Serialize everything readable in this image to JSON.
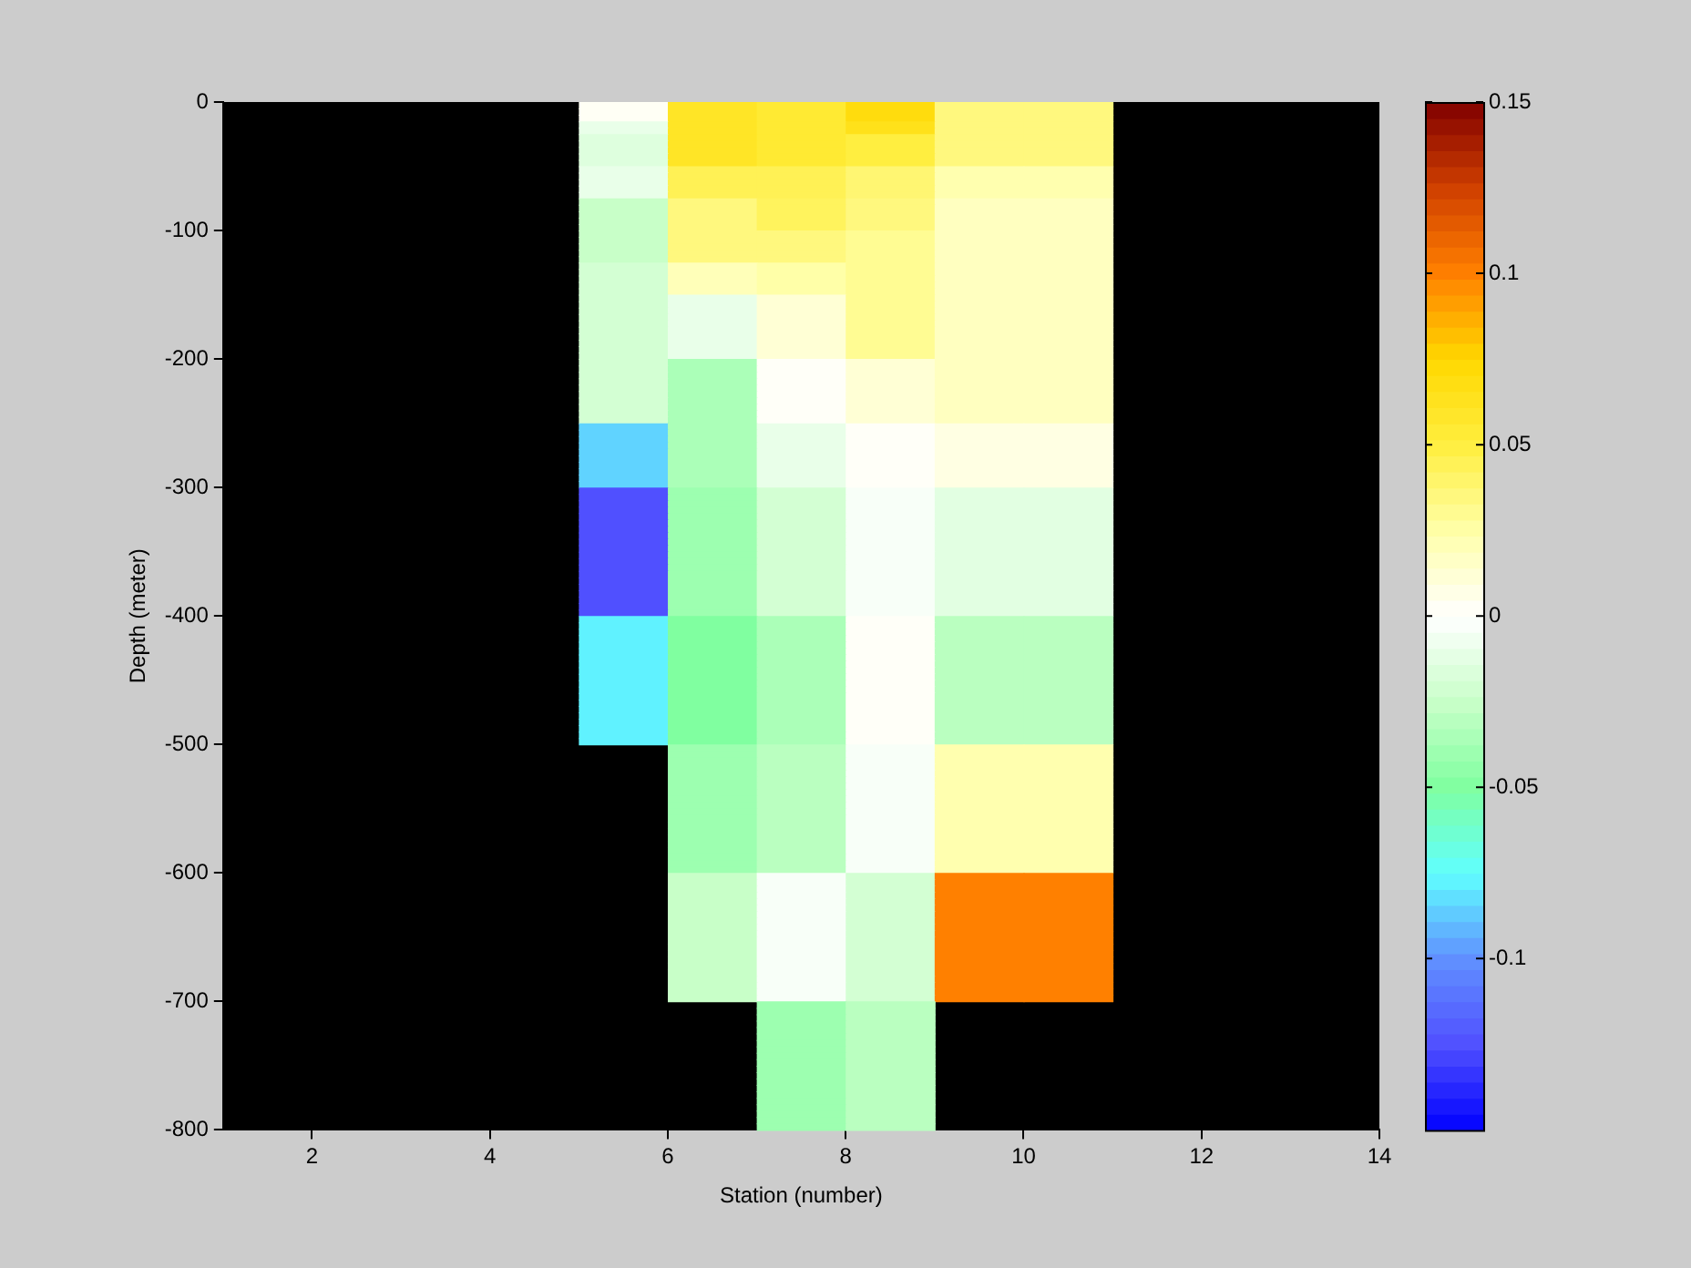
{
  "chart_data": {
    "type": "heatmap",
    "xlabel": "Station (number)",
    "ylabel": "Depth (meter)",
    "xlim": [
      1,
      14
    ],
    "xticks": [
      2,
      4,
      6,
      8,
      10,
      12,
      14
    ],
    "ylim": [
      -800,
      0
    ],
    "yticks": [
      -800,
      -700,
      -600,
      -500,
      -400,
      -300,
      -200,
      -100,
      0
    ],
    "clim": [
      -0.15,
      0.15
    ],
    "cticks": [
      -0.1,
      -0.05,
      0,
      0.05,
      0.1,
      0.15
    ],
    "cells": [
      [
        null,
        null,
        null,
        null,
        0.003,
        0.06,
        0.055,
        0.07,
        0.035,
        0.035,
        null,
        null,
        null
      ],
      [
        null,
        null,
        null,
        null,
        0.003,
        0.06,
        0.055,
        0.07,
        0.035,
        0.035,
        null,
        null,
        null
      ],
      [
        null,
        null,
        null,
        null,
        0.003,
        0.06,
        0.055,
        0.07,
        0.035,
        0.035,
        null,
        null,
        null
      ],
      [
        null,
        null,
        null,
        null,
        -0.01,
        0.06,
        0.055,
        0.065,
        0.035,
        0.035,
        null,
        null,
        null
      ],
      [
        null,
        null,
        null,
        null,
        -0.01,
        0.06,
        0.055,
        0.065,
        0.035,
        0.035,
        null,
        null,
        null
      ],
      [
        null,
        null,
        null,
        null,
        -0.015,
        0.06,
        0.055,
        0.05,
        0.035,
        0.035,
        null,
        null,
        null
      ],
      [
        null,
        null,
        null,
        null,
        -0.015,
        0.06,
        0.055,
        0.05,
        0.035,
        0.035,
        null,
        null,
        null
      ],
      [
        null,
        null,
        null,
        null,
        -0.015,
        0.06,
        0.055,
        0.05,
        0.035,
        0.035,
        null,
        null,
        null
      ],
      [
        null,
        null,
        null,
        null,
        -0.015,
        0.06,
        0.055,
        0.05,
        0.035,
        0.035,
        null,
        null,
        null
      ],
      [
        null,
        null,
        null,
        null,
        -0.015,
        0.06,
        0.055,
        0.05,
        0.035,
        0.035,
        null,
        null,
        null
      ],
      [
        null,
        null,
        null,
        null,
        -0.01,
        0.045,
        0.045,
        0.038,
        0.023,
        0.023,
        null,
        null,
        null
      ],
      [
        null,
        null,
        null,
        null,
        -0.01,
        0.045,
        0.045,
        0.038,
        0.023,
        0.023,
        null,
        null,
        null
      ],
      [
        null,
        null,
        null,
        null,
        -0.01,
        0.045,
        0.045,
        0.038,
        0.023,
        0.023,
        null,
        null,
        null
      ],
      [
        null,
        null,
        null,
        null,
        -0.01,
        0.045,
        0.045,
        0.038,
        0.023,
        0.023,
        null,
        null,
        null
      ],
      [
        null,
        null,
        null,
        null,
        -0.01,
        0.045,
        0.045,
        0.038,
        0.023,
        0.023,
        null,
        null,
        null
      ],
      [
        null,
        null,
        null,
        null,
        -0.025,
        0.035,
        0.043,
        0.035,
        0.018,
        0.018,
        null,
        null,
        null
      ],
      [
        null,
        null,
        null,
        null,
        -0.025,
        0.035,
        0.043,
        0.035,
        0.018,
        0.018,
        null,
        null,
        null
      ],
      [
        null,
        null,
        null,
        null,
        -0.025,
        0.035,
        0.043,
        0.035,
        0.018,
        0.018,
        null,
        null,
        null
      ],
      [
        null,
        null,
        null,
        null,
        -0.025,
        0.035,
        0.043,
        0.035,
        0.018,
        0.018,
        null,
        null,
        null
      ],
      [
        null,
        null,
        null,
        null,
        -0.025,
        0.035,
        0.043,
        0.035,
        0.018,
        0.018,
        null,
        null,
        null
      ],
      [
        null,
        null,
        null,
        null,
        -0.025,
        0.035,
        0.035,
        0.03,
        0.018,
        0.018,
        null,
        null,
        null
      ],
      [
        null,
        null,
        null,
        null,
        -0.025,
        0.035,
        0.035,
        0.03,
        0.018,
        0.018,
        null,
        null,
        null
      ],
      [
        null,
        null,
        null,
        null,
        -0.025,
        0.035,
        0.035,
        0.03,
        0.018,
        0.018,
        null,
        null,
        null
      ],
      [
        null,
        null,
        null,
        null,
        -0.025,
        0.035,
        0.035,
        0.03,
        0.018,
        0.018,
        null,
        null,
        null
      ],
      [
        null,
        null,
        null,
        null,
        -0.025,
        0.035,
        0.035,
        0.03,
        0.018,
        0.018,
        null,
        null,
        null
      ],
      [
        null,
        null,
        null,
        null,
        -0.02,
        0.02,
        0.025,
        0.03,
        0.018,
        0.018,
        null,
        null,
        null
      ],
      [
        null,
        null,
        null,
        null,
        -0.02,
        0.02,
        0.025,
        0.03,
        0.018,
        0.018,
        null,
        null,
        null
      ],
      [
        null,
        null,
        null,
        null,
        -0.02,
        0.02,
        0.025,
        0.03,
        0.018,
        0.018,
        null,
        null,
        null
      ],
      [
        null,
        null,
        null,
        null,
        -0.02,
        0.02,
        0.025,
        0.03,
        0.018,
        0.018,
        null,
        null,
        null
      ],
      [
        null,
        null,
        null,
        null,
        -0.02,
        0.02,
        0.025,
        0.03,
        0.018,
        0.018,
        null,
        null,
        null
      ],
      [
        null,
        null,
        null,
        null,
        -0.02,
        -0.01,
        0.012,
        0.03,
        0.018,
        0.018,
        null,
        null,
        null
      ],
      [
        null,
        null,
        null,
        null,
        -0.02,
        -0.01,
        0.012,
        0.03,
        0.018,
        0.018,
        null,
        null,
        null
      ],
      [
        null,
        null,
        null,
        null,
        -0.02,
        -0.01,
        0.012,
        0.03,
        0.018,
        0.018,
        null,
        null,
        null
      ],
      [
        null,
        null,
        null,
        null,
        -0.02,
        -0.01,
        0.012,
        0.03,
        0.018,
        0.018,
        null,
        null,
        null
      ],
      [
        null,
        null,
        null,
        null,
        -0.02,
        -0.01,
        0.012,
        0.03,
        0.018,
        0.018,
        null,
        null,
        null
      ],
      [
        null,
        null,
        null,
        null,
        -0.02,
        -0.01,
        0.012,
        0.03,
        0.018,
        0.018,
        null,
        null,
        null
      ],
      [
        null,
        null,
        null,
        null,
        -0.02,
        -0.01,
        0.012,
        0.03,
        0.018,
        0.018,
        null,
        null,
        null
      ],
      [
        null,
        null,
        null,
        null,
        -0.02,
        -0.01,
        0.012,
        0.03,
        0.018,
        0.018,
        null,
        null,
        null
      ],
      [
        null,
        null,
        null,
        null,
        -0.02,
        -0.01,
        0.012,
        0.03,
        0.018,
        0.018,
        null,
        null,
        null
      ],
      [
        null,
        null,
        null,
        null,
        -0.02,
        -0.01,
        0.012,
        0.03,
        0.018,
        0.018,
        null,
        null,
        null
      ],
      [
        null,
        null,
        null,
        null,
        -0.02,
        -0.035,
        0.002,
        0.012,
        0.018,
        0.018,
        null,
        null,
        null
      ],
      [
        null,
        null,
        null,
        null,
        -0.02,
        -0.035,
        0.002,
        0.012,
        0.018,
        0.018,
        null,
        null,
        null
      ],
      [
        null,
        null,
        null,
        null,
        -0.02,
        -0.035,
        0.002,
        0.012,
        0.018,
        0.018,
        null,
        null,
        null
      ],
      [
        null,
        null,
        null,
        null,
        -0.02,
        -0.035,
        0.002,
        0.012,
        0.018,
        0.018,
        null,
        null,
        null
      ],
      [
        null,
        null,
        null,
        null,
        -0.02,
        -0.035,
        0.002,
        0.012,
        0.018,
        0.018,
        null,
        null,
        null
      ],
      [
        null,
        null,
        null,
        null,
        -0.02,
        -0.035,
        0.002,
        0.012,
        0.018,
        0.018,
        null,
        null,
        null
      ],
      [
        null,
        null,
        null,
        null,
        -0.02,
        -0.035,
        0.002,
        0.012,
        0.018,
        0.018,
        null,
        null,
        null
      ],
      [
        null,
        null,
        null,
        null,
        -0.02,
        -0.035,
        0.002,
        0.012,
        0.018,
        0.018,
        null,
        null,
        null
      ],
      [
        null,
        null,
        null,
        null,
        -0.02,
        -0.035,
        0.002,
        0.012,
        0.018,
        0.018,
        null,
        null,
        null
      ],
      [
        null,
        null,
        null,
        null,
        -0.02,
        -0.035,
        0.002,
        0.012,
        0.018,
        0.018,
        null,
        null,
        null
      ],
      [
        null,
        null,
        null,
        null,
        -0.085,
        -0.035,
        -0.01,
        0.002,
        0.008,
        0.008,
        null,
        null,
        null
      ],
      [
        null,
        null,
        null,
        null,
        -0.085,
        -0.035,
        -0.01,
        0.002,
        0.008,
        0.008,
        null,
        null,
        null
      ],
      [
        null,
        null,
        null,
        null,
        -0.085,
        -0.035,
        -0.01,
        0.002,
        0.008,
        0.008,
        null,
        null,
        null
      ],
      [
        null,
        null,
        null,
        null,
        -0.085,
        -0.035,
        -0.01,
        0.002,
        0.008,
        0.008,
        null,
        null,
        null
      ],
      [
        null,
        null,
        null,
        null,
        -0.085,
        -0.035,
        -0.01,
        0.002,
        0.008,
        0.008,
        null,
        null,
        null
      ],
      [
        null,
        null,
        null,
        null,
        -0.085,
        -0.035,
        -0.01,
        0.002,
        0.008,
        0.008,
        null,
        null,
        null
      ],
      [
        null,
        null,
        null,
        null,
        -0.085,
        -0.035,
        -0.01,
        0.002,
        0.008,
        0.008,
        null,
        null,
        null
      ],
      [
        null,
        null,
        null,
        null,
        -0.085,
        -0.035,
        -0.01,
        0.002,
        0.008,
        0.008,
        null,
        null,
        null
      ],
      [
        null,
        null,
        null,
        null,
        -0.085,
        -0.035,
        -0.01,
        0.002,
        0.008,
        0.008,
        null,
        null,
        null
      ],
      [
        null,
        null,
        null,
        null,
        -0.085,
        -0.035,
        -0.01,
        0.002,
        0.008,
        0.008,
        null,
        null,
        null
      ],
      [
        null,
        null,
        null,
        null,
        -0.125,
        -0.04,
        -0.02,
        -0.003,
        -0.013,
        -0.013,
        null,
        null,
        null
      ],
      [
        null,
        null,
        null,
        null,
        -0.125,
        -0.04,
        -0.02,
        -0.003,
        -0.013,
        -0.013,
        null,
        null,
        null
      ],
      [
        null,
        null,
        null,
        null,
        -0.125,
        -0.04,
        -0.02,
        -0.003,
        -0.013,
        -0.013,
        null,
        null,
        null
      ],
      [
        null,
        null,
        null,
        null,
        -0.125,
        -0.04,
        -0.02,
        -0.003,
        -0.013,
        -0.013,
        null,
        null,
        null
      ],
      [
        null,
        null,
        null,
        null,
        -0.125,
        -0.04,
        -0.02,
        -0.003,
        -0.013,
        -0.013,
        null,
        null,
        null
      ],
      [
        null,
        null,
        null,
        null,
        -0.125,
        -0.04,
        -0.02,
        -0.003,
        -0.013,
        -0.013,
        null,
        null,
        null
      ],
      [
        null,
        null,
        null,
        null,
        -0.125,
        -0.04,
        -0.02,
        -0.003,
        -0.013,
        -0.013,
        null,
        null,
        null
      ],
      [
        null,
        null,
        null,
        null,
        -0.125,
        -0.04,
        -0.02,
        -0.003,
        -0.013,
        -0.013,
        null,
        null,
        null
      ],
      [
        null,
        null,
        null,
        null,
        -0.125,
        -0.04,
        -0.02,
        -0.003,
        -0.013,
        -0.013,
        null,
        null,
        null
      ],
      [
        null,
        null,
        null,
        null,
        -0.125,
        -0.04,
        -0.02,
        -0.003,
        -0.013,
        -0.013,
        null,
        null,
        null
      ],
      [
        null,
        null,
        null,
        null,
        -0.125,
        -0.04,
        -0.02,
        -0.003,
        -0.013,
        -0.013,
        null,
        null,
        null
      ],
      [
        null,
        null,
        null,
        null,
        -0.125,
        -0.04,
        -0.02,
        -0.003,
        -0.013,
        -0.013,
        null,
        null,
        null
      ],
      [
        null,
        null,
        null,
        null,
        -0.125,
        -0.04,
        -0.02,
        -0.003,
        -0.013,
        -0.013,
        null,
        null,
        null
      ],
      [
        null,
        null,
        null,
        null,
        -0.125,
        -0.04,
        -0.02,
        -0.003,
        -0.013,
        -0.013,
        null,
        null,
        null
      ],
      [
        null,
        null,
        null,
        null,
        -0.125,
        -0.04,
        -0.02,
        -0.003,
        -0.013,
        -0.013,
        null,
        null,
        null
      ],
      [
        null,
        null,
        null,
        null,
        -0.125,
        -0.04,
        -0.02,
        -0.003,
        -0.013,
        -0.013,
        null,
        null,
        null
      ],
      [
        null,
        null,
        null,
        null,
        -0.125,
        -0.04,
        -0.02,
        -0.003,
        -0.013,
        -0.013,
        null,
        null,
        null
      ],
      [
        null,
        null,
        null,
        null,
        -0.125,
        -0.04,
        -0.02,
        -0.003,
        -0.013,
        -0.013,
        null,
        null,
        null
      ],
      [
        null,
        null,
        null,
        null,
        -0.125,
        -0.04,
        -0.02,
        -0.003,
        -0.013,
        -0.013,
        null,
        null,
        null
      ],
      [
        null,
        null,
        null,
        null,
        -0.125,
        -0.04,
        -0.02,
        -0.003,
        -0.013,
        -0.013,
        null,
        null,
        null
      ],
      [
        null,
        null,
        null,
        null,
        -0.078,
        -0.05,
        -0.035,
        0.002,
        -0.03,
        -0.03,
        null,
        null,
        null
      ],
      [
        null,
        null,
        null,
        null,
        -0.078,
        -0.05,
        -0.035,
        0.002,
        -0.03,
        -0.03,
        null,
        null,
        null
      ],
      [
        null,
        null,
        null,
        null,
        -0.078,
        -0.05,
        -0.035,
        0.002,
        -0.03,
        -0.03,
        null,
        null,
        null
      ],
      [
        null,
        null,
        null,
        null,
        -0.078,
        -0.05,
        -0.035,
        0.002,
        -0.03,
        -0.03,
        null,
        null,
        null
      ],
      [
        null,
        null,
        null,
        null,
        -0.078,
        -0.05,
        -0.035,
        0.002,
        -0.03,
        -0.03,
        null,
        null,
        null
      ],
      [
        null,
        null,
        null,
        null,
        -0.078,
        -0.05,
        -0.035,
        0.002,
        -0.03,
        -0.03,
        null,
        null,
        null
      ],
      [
        null,
        null,
        null,
        null,
        -0.078,
        -0.05,
        -0.035,
        0.002,
        -0.03,
        -0.03,
        null,
        null,
        null
      ],
      [
        null,
        null,
        null,
        null,
        -0.078,
        -0.05,
        -0.035,
        0.002,
        -0.03,
        -0.03,
        null,
        null,
        null
      ],
      [
        null,
        null,
        null,
        null,
        -0.078,
        -0.05,
        -0.035,
        0.002,
        -0.03,
        -0.03,
        null,
        null,
        null
      ],
      [
        null,
        null,
        null,
        null,
        -0.078,
        -0.05,
        -0.035,
        0.002,
        -0.03,
        -0.03,
        null,
        null,
        null
      ],
      [
        null,
        null,
        null,
        null,
        -0.078,
        -0.05,
        -0.035,
        0.002,
        -0.03,
        -0.03,
        null,
        null,
        null
      ],
      [
        null,
        null,
        null,
        null,
        -0.078,
        -0.05,
        -0.035,
        0.002,
        -0.03,
        -0.03,
        null,
        null,
        null
      ],
      [
        null,
        null,
        null,
        null,
        -0.078,
        -0.05,
        -0.035,
        0.002,
        -0.03,
        -0.03,
        null,
        null,
        null
      ],
      [
        null,
        null,
        null,
        null,
        -0.078,
        -0.05,
        -0.035,
        0.002,
        -0.03,
        -0.03,
        null,
        null,
        null
      ],
      [
        null,
        null,
        null,
        null,
        -0.078,
        -0.05,
        -0.035,
        0.002,
        -0.03,
        -0.03,
        null,
        null,
        null
      ],
      [
        null,
        null,
        null,
        null,
        -0.078,
        -0.05,
        -0.035,
        0.002,
        -0.03,
        -0.03,
        null,
        null,
        null
      ],
      [
        null,
        null,
        null,
        null,
        -0.078,
        -0.05,
        -0.035,
        0.002,
        -0.03,
        -0.03,
        null,
        null,
        null
      ],
      [
        null,
        null,
        null,
        null,
        -0.078,
        -0.05,
        -0.035,
        0.002,
        -0.03,
        -0.03,
        null,
        null,
        null
      ],
      [
        null,
        null,
        null,
        null,
        -0.078,
        -0.05,
        -0.035,
        0.002,
        -0.03,
        -0.03,
        null,
        null,
        null
      ],
      [
        null,
        null,
        null,
        null,
        -0.078,
        -0.05,
        -0.035,
        0.002,
        -0.03,
        -0.03,
        null,
        null,
        null
      ],
      [
        null,
        null,
        null,
        null,
        null,
        -0.04,
        -0.03,
        -0.003,
        0.023,
        0.023,
        null,
        null,
        null
      ],
      [
        null,
        null,
        null,
        null,
        null,
        -0.04,
        -0.03,
        -0.003,
        0.023,
        0.023,
        null,
        null,
        null
      ],
      [
        null,
        null,
        null,
        null,
        null,
        -0.04,
        -0.03,
        -0.003,
        0.023,
        0.023,
        null,
        null,
        null
      ],
      [
        null,
        null,
        null,
        null,
        null,
        -0.04,
        -0.03,
        -0.003,
        0.023,
        0.023,
        null,
        null,
        null
      ],
      [
        null,
        null,
        null,
        null,
        null,
        -0.04,
        -0.03,
        -0.003,
        0.023,
        0.023,
        null,
        null,
        null
      ],
      [
        null,
        null,
        null,
        null,
        null,
        -0.04,
        -0.03,
        -0.003,
        0.023,
        0.023,
        null,
        null,
        null
      ],
      [
        null,
        null,
        null,
        null,
        null,
        -0.04,
        -0.03,
        -0.003,
        0.023,
        0.023,
        null,
        null,
        null
      ],
      [
        null,
        null,
        null,
        null,
        null,
        -0.04,
        -0.03,
        -0.003,
        0.023,
        0.023,
        null,
        null,
        null
      ],
      [
        null,
        null,
        null,
        null,
        null,
        -0.04,
        -0.03,
        -0.003,
        0.023,
        0.023,
        null,
        null,
        null
      ],
      [
        null,
        null,
        null,
        null,
        null,
        -0.04,
        -0.03,
        -0.003,
        0.023,
        0.023,
        null,
        null,
        null
      ],
      [
        null,
        null,
        null,
        null,
        null,
        -0.04,
        -0.03,
        -0.003,
        0.023,
        0.023,
        null,
        null,
        null
      ],
      [
        null,
        null,
        null,
        null,
        null,
        -0.04,
        -0.03,
        -0.003,
        0.023,
        0.023,
        null,
        null,
        null
      ],
      [
        null,
        null,
        null,
        null,
        null,
        -0.04,
        -0.03,
        -0.003,
        0.023,
        0.023,
        null,
        null,
        null
      ],
      [
        null,
        null,
        null,
        null,
        null,
        -0.04,
        -0.03,
        -0.003,
        0.023,
        0.023,
        null,
        null,
        null
      ],
      [
        null,
        null,
        null,
        null,
        null,
        -0.04,
        -0.03,
        -0.003,
        0.023,
        0.023,
        null,
        null,
        null
      ],
      [
        null,
        null,
        null,
        null,
        null,
        -0.04,
        -0.03,
        -0.003,
        0.023,
        0.023,
        null,
        null,
        null
      ],
      [
        null,
        null,
        null,
        null,
        null,
        -0.04,
        -0.03,
        -0.003,
        0.023,
        0.023,
        null,
        null,
        null
      ],
      [
        null,
        null,
        null,
        null,
        null,
        -0.04,
        -0.03,
        -0.003,
        0.023,
        0.023,
        null,
        null,
        null
      ],
      [
        null,
        null,
        null,
        null,
        null,
        -0.04,
        -0.03,
        -0.003,
        0.023,
        0.023,
        null,
        null,
        null
      ],
      [
        null,
        null,
        null,
        null,
        null,
        -0.04,
        -0.03,
        -0.003,
        0.023,
        0.023,
        null,
        null,
        null
      ],
      [
        null,
        null,
        null,
        null,
        null,
        -0.025,
        -0.003,
        -0.02,
        0.1,
        0.1,
        null,
        null,
        null
      ],
      [
        null,
        null,
        null,
        null,
        null,
        -0.025,
        -0.003,
        -0.02,
        0.1,
        0.1,
        null,
        null,
        null
      ],
      [
        null,
        null,
        null,
        null,
        null,
        -0.025,
        -0.003,
        -0.02,
        0.1,
        0.1,
        null,
        null,
        null
      ],
      [
        null,
        null,
        null,
        null,
        null,
        -0.025,
        -0.003,
        -0.02,
        0.1,
        0.1,
        null,
        null,
        null
      ],
      [
        null,
        null,
        null,
        null,
        null,
        -0.025,
        -0.003,
        -0.02,
        0.1,
        0.1,
        null,
        null,
        null
      ],
      [
        null,
        null,
        null,
        null,
        null,
        -0.025,
        -0.003,
        -0.02,
        0.1,
        0.1,
        null,
        null,
        null
      ],
      [
        null,
        null,
        null,
        null,
        null,
        -0.025,
        -0.003,
        -0.02,
        0.1,
        0.1,
        null,
        null,
        null
      ],
      [
        null,
        null,
        null,
        null,
        null,
        -0.025,
        -0.003,
        -0.02,
        0.1,
        0.1,
        null,
        null,
        null
      ],
      [
        null,
        null,
        null,
        null,
        null,
        -0.025,
        -0.003,
        -0.02,
        0.1,
        0.1,
        null,
        null,
        null
      ],
      [
        null,
        null,
        null,
        null,
        null,
        -0.025,
        -0.003,
        -0.02,
        0.1,
        0.1,
        null,
        null,
        null
      ],
      [
        null,
        null,
        null,
        null,
        null,
        -0.025,
        -0.003,
        -0.02,
        0.1,
        0.1,
        null,
        null,
        null
      ],
      [
        null,
        null,
        null,
        null,
        null,
        -0.025,
        -0.003,
        -0.02,
        0.1,
        0.1,
        null,
        null,
        null
      ],
      [
        null,
        null,
        null,
        null,
        null,
        -0.025,
        -0.003,
        -0.02,
        0.1,
        0.1,
        null,
        null,
        null
      ],
      [
        null,
        null,
        null,
        null,
        null,
        -0.025,
        -0.003,
        -0.02,
        0.1,
        0.1,
        null,
        null,
        null
      ],
      [
        null,
        null,
        null,
        null,
        null,
        -0.025,
        -0.003,
        -0.02,
        0.1,
        0.1,
        null,
        null,
        null
      ],
      [
        null,
        null,
        null,
        null,
        null,
        -0.025,
        -0.003,
        -0.02,
        0.1,
        0.1,
        null,
        null,
        null
      ],
      [
        null,
        null,
        null,
        null,
        null,
        -0.025,
        -0.003,
        -0.02,
        0.1,
        0.1,
        null,
        null,
        null
      ],
      [
        null,
        null,
        null,
        null,
        null,
        -0.025,
        -0.003,
        -0.02,
        0.1,
        0.1,
        null,
        null,
        null
      ],
      [
        null,
        null,
        null,
        null,
        null,
        -0.025,
        -0.003,
        -0.02,
        0.1,
        0.1,
        null,
        null,
        null
      ],
      [
        null,
        null,
        null,
        null,
        null,
        -0.025,
        -0.003,
        -0.02,
        0.1,
        0.1,
        null,
        null,
        null
      ],
      [
        null,
        null,
        null,
        null,
        null,
        null,
        -0.04,
        -0.03,
        null,
        null,
        null,
        null,
        null
      ],
      [
        null,
        null,
        null,
        null,
        null,
        null,
        -0.04,
        -0.03,
        null,
        null,
        null,
        null,
        null
      ],
      [
        null,
        null,
        null,
        null,
        null,
        null,
        -0.04,
        -0.03,
        null,
        null,
        null,
        null,
        null
      ],
      [
        null,
        null,
        null,
        null,
        null,
        null,
        -0.04,
        -0.03,
        null,
        null,
        null,
        null,
        null
      ],
      [
        null,
        null,
        null,
        null,
        null,
        null,
        -0.04,
        -0.03,
        null,
        null,
        null,
        null,
        null
      ],
      [
        null,
        null,
        null,
        null,
        null,
        null,
        -0.04,
        -0.03,
        null,
        null,
        null,
        null,
        null
      ],
      [
        null,
        null,
        null,
        null,
        null,
        null,
        -0.04,
        -0.03,
        null,
        null,
        null,
        null,
        null
      ],
      [
        null,
        null,
        null,
        null,
        null,
        null,
        -0.04,
        -0.03,
        null,
        null,
        null,
        null,
        null
      ],
      [
        null,
        null,
        null,
        null,
        null,
        null,
        -0.04,
        -0.03,
        null,
        null,
        null,
        null,
        null
      ],
      [
        null,
        null,
        null,
        null,
        null,
        null,
        -0.04,
        -0.03,
        null,
        null,
        null,
        null,
        null
      ],
      [
        null,
        null,
        null,
        null,
        null,
        null,
        -0.04,
        -0.03,
        null,
        null,
        null,
        null,
        null
      ],
      [
        null,
        null,
        null,
        null,
        null,
        null,
        -0.04,
        -0.03,
        null,
        null,
        null,
        null,
        null
      ],
      [
        null,
        null,
        null,
        null,
        null,
        null,
        -0.04,
        -0.03,
        null,
        null,
        null,
        null,
        null
      ],
      [
        null,
        null,
        null,
        null,
        null,
        null,
        -0.04,
        -0.03,
        null,
        null,
        null,
        null,
        null
      ],
      [
        null,
        null,
        null,
        null,
        null,
        null,
        -0.04,
        -0.03,
        null,
        null,
        null,
        null,
        null
      ],
      [
        null,
        null,
        null,
        null,
        null,
        null,
        -0.04,
        -0.03,
        null,
        null,
        null,
        null,
        null
      ],
      [
        null,
        null,
        null,
        null,
        null,
        null,
        -0.04,
        -0.03,
        null,
        null,
        null,
        null,
        null
      ],
      [
        null,
        null,
        null,
        null,
        null,
        null,
        -0.04,
        -0.03,
        null,
        null,
        null,
        null,
        null
      ],
      [
        null,
        null,
        null,
        null,
        null,
        null,
        -0.04,
        -0.03,
        null,
        null,
        null,
        null,
        null
      ],
      [
        null,
        null,
        null,
        null,
        null,
        null,
        -0.04,
        -0.03,
        null,
        null,
        null,
        null,
        null
      ]
    ]
  }
}
